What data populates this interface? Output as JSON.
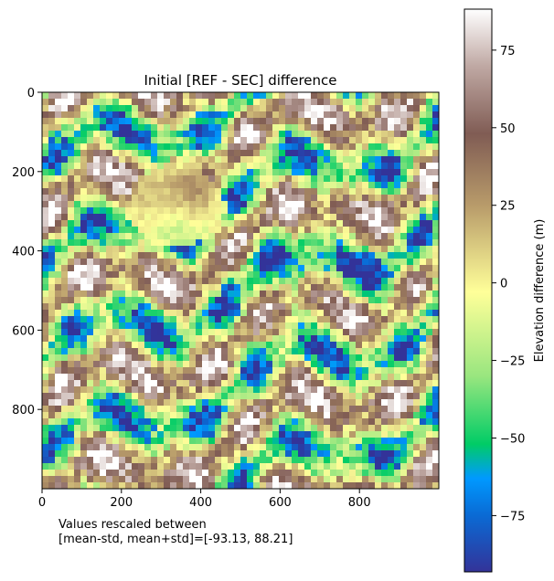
{
  "chart_data": {
    "type": "heatmap",
    "title": "Initial [REF - SEC] difference",
    "xlabel": "",
    "ylabel": "",
    "xlim": [
      0,
      1000
    ],
    "ylim": [
      1000,
      0
    ],
    "x_ticks": [
      0,
      200,
      400,
      600,
      800
    ],
    "y_ticks": [
      0,
      200,
      400,
      600,
      800
    ],
    "colorbar": {
      "label": "Elevation difference (m)",
      "range": [
        -93.13,
        88.21
      ],
      "ticks": [
        -75,
        -50,
        -25,
        0,
        25,
        50,
        75
      ],
      "colormap": "terrain",
      "stops": [
        {
          "value": -93.13,
          "color": "#333399"
        },
        {
          "value": -75,
          "color": "#0a6ad4"
        },
        {
          "value": -63,
          "color": "#0099ff"
        },
        {
          "value": -52,
          "color": "#00cc66"
        },
        {
          "value": -30,
          "color": "#99e67f"
        },
        {
          "value": -3,
          "color": "#ffff99"
        },
        {
          "value": 25,
          "color": "#b89b6a"
        },
        {
          "value": 48,
          "color": "#805c54"
        },
        {
          "value": 70,
          "color": "#c0a9a4"
        },
        {
          "value": 88.21,
          "color": "#ffffff"
        }
      ]
    },
    "annotation": "Values rescaled between\n[mean-std, mean+std]=[-93.13, 88.21]"
  }
}
